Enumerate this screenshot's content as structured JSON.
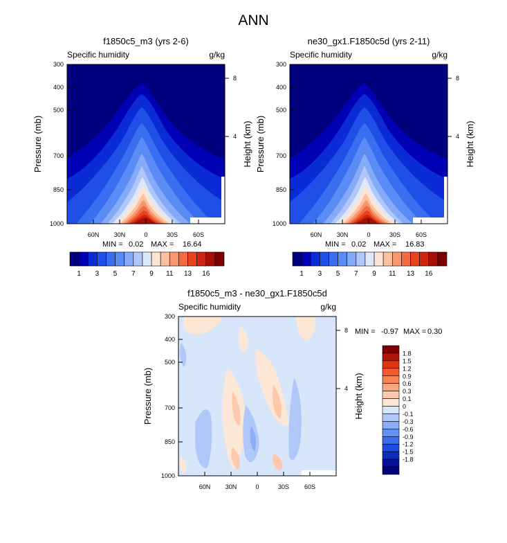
{
  "page": {
    "title": "ANN"
  },
  "chart_data": [
    {
      "type": "heatmap",
      "title": "f1850c5_m3 (yrs 2-6)",
      "variable": "Specific humidity",
      "units": "g/kg",
      "ylabel": "Pressure (mb)",
      "y2label": "Height (km)",
      "y_ticks": [
        "300",
        "400",
        "500",
        "700",
        "850",
        "1000"
      ],
      "y2_ticks": [
        "8",
        "4"
      ],
      "x_ticks": [
        "60N",
        "30N",
        "0",
        "30S",
        "60S"
      ],
      "x_range": [
        "90N",
        "90S"
      ],
      "ylim": [
        1000,
        300
      ],
      "min_label": "MIN =",
      "min": "0.02",
      "max_label": "MAX =",
      "max": "16.64",
      "peak": {
        "lat": "0",
        "pressure": 1000,
        "value": 16.64
      }
    },
    {
      "type": "heatmap",
      "title": "ne30_gx1.F1850c5d (yrs 2-11)",
      "variable": "Specific humidity",
      "units": "g/kg",
      "ylabel": "Pressure (mb)",
      "y2label": "Height (km)",
      "y_ticks": [
        "300",
        "400",
        "500",
        "700",
        "850",
        "1000"
      ],
      "y2_ticks": [
        "8",
        "4"
      ],
      "x_ticks": [
        "60N",
        "30N",
        "0",
        "30S",
        "60S"
      ],
      "x_range": [
        "90N",
        "90S"
      ],
      "ylim": [
        1000,
        300
      ],
      "min_label": "MIN =",
      "min": "0.02",
      "max_label": "MAX =",
      "max": "16.83",
      "peak": {
        "lat": "0",
        "pressure": 1000,
        "value": 16.83
      }
    },
    {
      "type": "heatmap",
      "title": "f1850c5_m3 - ne30_gx1.F1850c5d",
      "variable": "Specific humidity",
      "units": "g/kg",
      "ylabel": "Pressure (mb)",
      "y2label": "Height (km)",
      "y_ticks": [
        "300",
        "400",
        "500",
        "700",
        "850",
        "1000"
      ],
      "y2_ticks": [
        "8",
        "4"
      ],
      "x_ticks": [
        "60N",
        "30N",
        "0",
        "30S",
        "60S"
      ],
      "x_range": [
        "90N",
        "90S"
      ],
      "ylim": [
        1000,
        300
      ],
      "min_label": "MIN =",
      "min": "-0.97",
      "max_label": "MAX =",
      "max": "0.30"
    }
  ],
  "colorbars": {
    "absolute": {
      "colors": [
        "#00007f",
        "#0000b5",
        "#0a2bd6",
        "#1f4fe6",
        "#3a6ef0",
        "#5b8cf6",
        "#84aaf8",
        "#b0c8f9",
        "#dde8fb",
        "#fde3d1",
        "#fbc0a0",
        "#f8966e",
        "#f36a43",
        "#e8421f",
        "#cf2410",
        "#a70f06",
        "#7c0000"
      ],
      "labels": [
        "1",
        "3",
        "5",
        "7",
        "9",
        "11",
        "13",
        "16"
      ]
    },
    "difference": {
      "colors": [
        "#7c0000",
        "#b61406",
        "#e0330f",
        "#f45a2e",
        "#f88355",
        "#fba682",
        "#fdc8ab",
        "#fce6d6",
        "#d8e6fb",
        "#b0c8f9",
        "#8aaef7",
        "#648ff3",
        "#3b6ee9",
        "#1f4cdc",
        "#0e2dbd",
        "#060f96",
        "#00007f"
      ],
      "labels": [
        "1.8",
        "1.5",
        "1.2",
        "0.9",
        "0.6",
        "0.3",
        "0.1",
        "0",
        "-0.1",
        "-0.3",
        "-0.6",
        "-0.9",
        "-1.2",
        "-1.5",
        "-1.8"
      ]
    }
  }
}
